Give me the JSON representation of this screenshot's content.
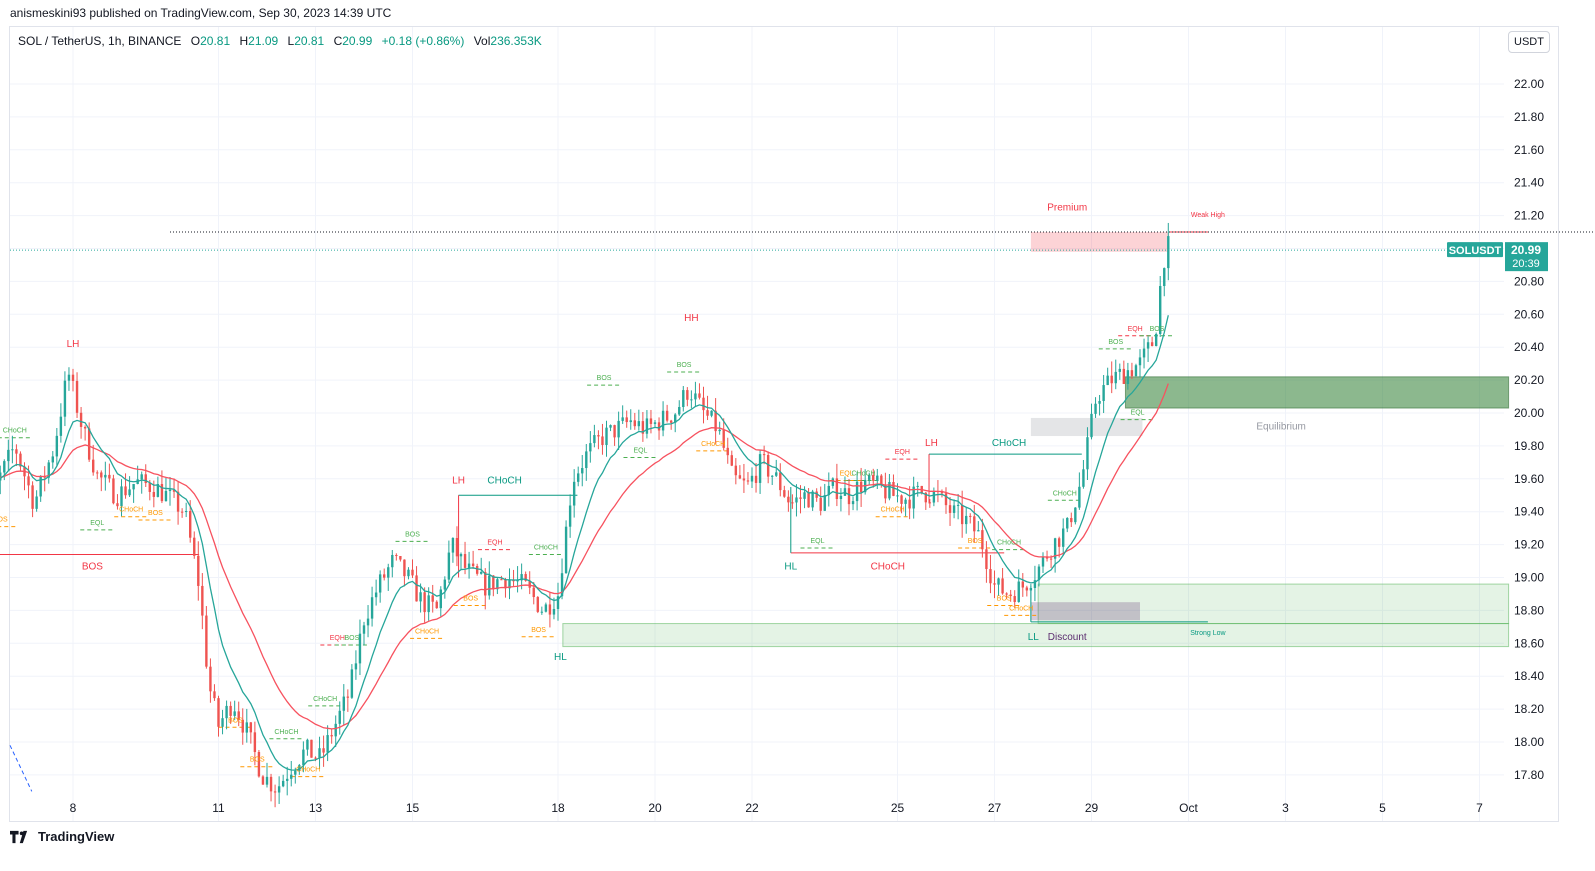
{
  "header": {
    "text": "anismeskini93 published on TradingView.com, Sep 30, 2023 14:39 UTC"
  },
  "legend": {
    "symbol": "SOL / TetherUS, 1h, BINANCE",
    "open_label": "O",
    "open": "20.81",
    "high_label": "H",
    "high": "21.09",
    "low_label": "L",
    "low": "20.81",
    "close_label": "C",
    "close": "20.99",
    "change": "+0.18 (+0.86%)",
    "vol_label": "Vol",
    "vol": "236.353K"
  },
  "currency_button": "USDT",
  "footer": {
    "brand": "TradingView"
  },
  "colors": {
    "up": "#26a69a",
    "down": "#ef5350",
    "bull_label": "#089981",
    "bear_label": "#f23645",
    "internal_bull": "#4caf50",
    "internal_bear": "#ff9800",
    "premium": "#f23645",
    "discount": "#5b2c6f",
    "equilibrium": "#9598a1"
  },
  "chart_data": {
    "type": "candlestick",
    "symbol": "SOLUSDT",
    "timeframe": "1h",
    "y_ticks": [
      "22.00",
      "21.80",
      "21.60",
      "21.40",
      "21.20",
      "21.00",
      "20.80",
      "20.60",
      "20.40",
      "20.20",
      "20.00",
      "19.80",
      "19.60",
      "19.40",
      "19.20",
      "19.00",
      "18.80",
      "18.60",
      "18.40",
      "18.20",
      "18.00",
      "17.80"
    ],
    "x_ticks": [
      "8",
      "11",
      "13",
      "15",
      "18",
      "20",
      "22",
      "25",
      "27",
      "29",
      "Oct",
      "3",
      "5",
      "7"
    ],
    "ylim": [
      17.68,
      22.08
    ],
    "last_price": {
      "label": "SOLUSDT",
      "price": "20.99",
      "countdown": "20:39"
    },
    "price_path": [
      [
        6.0,
        19.62
      ],
      [
        6.4,
        19.55
      ],
      [
        6.8,
        19.8
      ],
      [
        7.2,
        19.45
      ],
      [
        7.6,
        19.78
      ],
      [
        7.9,
        20.25
      ],
      [
        8.2,
        19.9
      ],
      [
        8.5,
        19.62
      ],
      [
        8.9,
        19.5
      ],
      [
        9.3,
        19.58
      ],
      [
        9.7,
        19.55
      ],
      [
        10.0,
        19.48
      ],
      [
        10.3,
        19.4
      ],
      [
        10.6,
        18.95
      ],
      [
        10.8,
        18.35
      ],
      [
        11.0,
        18.1
      ],
      [
        11.3,
        18.25
      ],
      [
        11.6,
        18.05
      ],
      [
        11.9,
        17.8
      ],
      [
        12.2,
        17.72
      ],
      [
        12.5,
        17.85
      ],
      [
        12.8,
        17.95
      ],
      [
        13.1,
        17.9
      ],
      [
        13.4,
        18.1
      ],
      [
        13.7,
        18.3
      ],
      [
        14.0,
        18.75
      ],
      [
        14.3,
        18.95
      ],
      [
        14.6,
        19.1
      ],
      [
        14.9,
        19.0
      ],
      [
        15.2,
        18.85
      ],
      [
        15.5,
        18.8
      ],
      [
        15.8,
        19.2
      ],
      [
        16.1,
        19.05
      ],
      [
        16.5,
        18.95
      ],
      [
        16.9,
        19.0
      ],
      [
        17.3,
        18.95
      ],
      [
        17.7,
        18.8
      ],
      [
        18.0,
        18.9
      ],
      [
        18.3,
        19.6
      ],
      [
        18.6,
        19.75
      ],
      [
        18.9,
        19.85
      ],
      [
        19.2,
        19.9
      ],
      [
        19.5,
        19.95
      ],
      [
        19.8,
        19.9
      ],
      [
        20.1,
        19.95
      ],
      [
        20.4,
        20.0
      ],
      [
        20.7,
        20.15
      ],
      [
        21.0,
        20.0
      ],
      [
        21.3,
        19.9
      ],
      [
        21.6,
        19.6
      ],
      [
        21.9,
        19.55
      ],
      [
        22.2,
        19.7
      ],
      [
        22.5,
        19.6
      ],
      [
        22.8,
        19.45
      ],
      [
        23.1,
        19.5
      ],
      [
        23.4,
        19.45
      ],
      [
        23.7,
        19.55
      ],
      [
        24.0,
        19.5
      ],
      [
        24.3,
        19.58
      ],
      [
        24.6,
        19.55
      ],
      [
        24.9,
        19.5
      ],
      [
        25.2,
        19.48
      ],
      [
        25.5,
        19.52
      ],
      [
        25.8,
        19.5
      ],
      [
        26.1,
        19.4
      ],
      [
        26.4,
        19.35
      ],
      [
        26.7,
        19.25
      ],
      [
        27.0,
        18.95
      ],
      [
        27.3,
        18.9
      ],
      [
        27.6,
        18.95
      ],
      [
        27.9,
        19.05
      ],
      [
        28.2,
        19.2
      ],
      [
        28.5,
        19.3
      ],
      [
        28.8,
        19.6
      ],
      [
        29.1,
        20.1
      ],
      [
        29.4,
        20.2
      ],
      [
        29.7,
        20.25
      ],
      [
        30.0,
        20.3
      ],
      [
        30.3,
        20.45
      ],
      [
        30.45,
        20.85
      ],
      [
        30.55,
        21.05
      ],
      [
        30.6,
        20.99
      ]
    ],
    "ema_fast_color": "#26a69a",
    "ema_slow_color": "#f7525f",
    "structure_labels": [
      {
        "text": "LH",
        "x": 8.0,
        "y": 20.4,
        "color": "#f23645"
      },
      {
        "text": "HL",
        "x": 6.05,
        "y": 19.05,
        "color": "#089981"
      },
      {
        "text": "BOS",
        "x": 8.4,
        "y": 19.05,
        "color": "#f23645"
      },
      {
        "text": "LH",
        "x": 15.95,
        "y": 19.57,
        "color": "#f23645"
      },
      {
        "text": "CHoCH",
        "x": 16.9,
        "y": 19.57,
        "color": "#089981"
      },
      {
        "text": "HL",
        "x": 18.05,
        "y": 18.5,
        "color": "#089981"
      },
      {
        "text": "HH",
        "x": 20.75,
        "y": 20.56,
        "color": "#f23645"
      },
      {
        "text": "LH",
        "x": 25.7,
        "y": 19.8,
        "color": "#f23645"
      },
      {
        "text": "CHoCH",
        "x": 27.3,
        "y": 19.8,
        "color": "#089981"
      },
      {
        "text": "HL",
        "x": 22.8,
        "y": 19.05,
        "color": "#089981"
      },
      {
        "text": "CHoCH",
        "x": 24.8,
        "y": 19.05,
        "color": "#f23645"
      },
      {
        "text": "LL",
        "x": 27.8,
        "y": 18.62,
        "color": "#089981"
      }
    ],
    "zone_labels": [
      {
        "text": "Premium",
        "x": 28.5,
        "y": 21.23,
        "color": "#f23645"
      },
      {
        "text": "Weak High",
        "x": 31.4,
        "y": 21.19,
        "color": "#f23645"
      },
      {
        "text": "Equilibrium",
        "x": 32.4,
        "y": 19.9,
        "color": "#9598a1"
      },
      {
        "text": "Discount",
        "x": 28.5,
        "y": 18.62,
        "color": "#5b2c6f"
      },
      {
        "text": "Strong Low",
        "x": 31.4,
        "y": 18.65,
        "color": "#089981"
      }
    ],
    "internal_labels": [
      {
        "text": "CHoCH",
        "x": 6.8,
        "y": 19.88,
        "color": "#4caf50"
      },
      {
        "text": "BOS",
        "x": 6.5,
        "y": 19.34,
        "color": "#ff9800"
      },
      {
        "text": "EQL",
        "x": 8.5,
        "y": 19.32,
        "color": "#4caf50"
      },
      {
        "text": "CHoCH",
        "x": 9.2,
        "y": 19.4,
        "color": "#ff9800"
      },
      {
        "text": "BOS",
        "x": 9.7,
        "y": 19.38,
        "color": "#ff9800"
      },
      {
        "text": "BOS",
        "x": 11.35,
        "y": 18.12,
        "color": "#ff9800"
      },
      {
        "text": "BOS",
        "x": 11.8,
        "y": 17.88,
        "color": "#ff9800"
      },
      {
        "text": "CHoCH",
        "x": 12.4,
        "y": 18.05,
        "color": "#4caf50"
      },
      {
        "text": "CHoCH",
        "x": 12.85,
        "y": 17.82,
        "color": "#ff9800"
      },
      {
        "text": "CHoCH",
        "x": 13.2,
        "y": 18.25,
        "color": "#4caf50"
      },
      {
        "text": "EQH",
        "x": 13.45,
        "y": 18.62,
        "color": "#f23645"
      },
      {
        "text": "BOS",
        "x": 13.75,
        "y": 18.62,
        "color": "#4caf50"
      },
      {
        "text": "BOS",
        "x": 15.0,
        "y": 19.25,
        "color": "#4caf50"
      },
      {
        "text": "CHoCH",
        "x": 15.3,
        "y": 18.66,
        "color": "#ff9800"
      },
      {
        "text": "BOS",
        "x": 16.2,
        "y": 18.86,
        "color": "#ff9800"
      },
      {
        "text": "EQH",
        "x": 16.7,
        "y": 19.2,
        "color": "#f23645"
      },
      {
        "text": "CHoCH",
        "x": 17.75,
        "y": 19.17,
        "color": "#4caf50"
      },
      {
        "text": "BOS",
        "x": 17.6,
        "y": 18.67,
        "color": "#ff9800"
      },
      {
        "text": "BOS",
        "x": 18.95,
        "y": 20.2,
        "color": "#4caf50"
      },
      {
        "text": "EQL",
        "x": 19.7,
        "y": 19.76,
        "color": "#4caf50"
      },
      {
        "text": "BOS",
        "x": 20.6,
        "y": 20.28,
        "color": "#4caf50"
      },
      {
        "text": "CHoCH",
        "x": 21.2,
        "y": 19.8,
        "color": "#ff9800"
      },
      {
        "text": "EQL",
        "x": 23.35,
        "y": 19.21,
        "color": "#4caf50"
      },
      {
        "text": "EQL",
        "x": 23.95,
        "y": 19.62,
        "color": "#ff9800"
      },
      {
        "text": "CHoCH",
        "x": 24.3,
        "y": 19.62,
        "color": "#4caf50"
      },
      {
        "text": "EQH",
        "x": 25.1,
        "y": 19.75,
        "color": "#f23645"
      },
      {
        "text": "CHoCH",
        "x": 24.9,
        "y": 19.4,
        "color": "#ff9800"
      },
      {
        "text": "BOS",
        "x": 26.6,
        "y": 19.21,
        "color": "#ff9800"
      },
      {
        "text": "CHoCH",
        "x": 27.3,
        "y": 19.2,
        "color": "#4caf50"
      },
      {
        "text": "BOS",
        "x": 27.2,
        "y": 18.86,
        "color": "#ff9800"
      },
      {
        "text": "CHoCH",
        "x": 27.55,
        "y": 18.8,
        "color": "#ff9800"
      },
      {
        "text": "CHoCH",
        "x": 28.45,
        "y": 19.5,
        "color": "#4caf50"
      },
      {
        "text": "BOS",
        "x": 29.5,
        "y": 20.42,
        "color": "#4caf50"
      },
      {
        "text": "EQH",
        "x": 29.9,
        "y": 20.5,
        "color": "#f23645"
      },
      {
        "text": "BOS",
        "x": 30.35,
        "y": 20.5,
        "color": "#4caf50"
      },
      {
        "text": "EQL",
        "x": 29.95,
        "y": 19.99,
        "color": "#4caf50"
      }
    ]
  }
}
